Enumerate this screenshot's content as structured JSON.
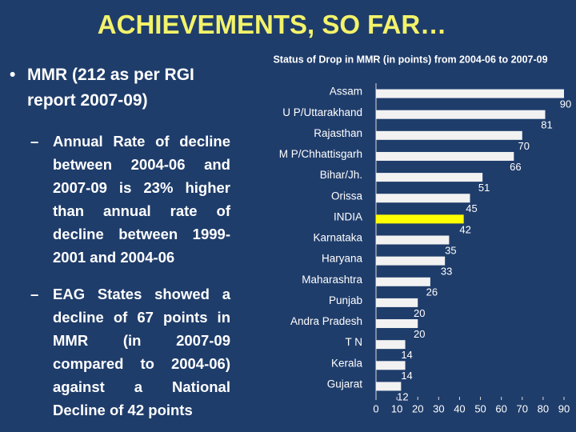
{
  "title": "ACHIEVEMENTS, SO FAR…",
  "bullets": [
    {
      "text": "MMR (212 as per RGI report 2007-09)",
      "subbullets": [
        "Annual Rate of decline between 2004-06 and 2007-09 is 23% higher than annual rate of decline between 1999-2001 and 2004-06",
        "EAG States showed a decline of 67 points in MMR (in 2007-09 compared to 2004-06) against a National Decline of 42 points"
      ]
    }
  ],
  "chart_data": {
    "type": "hbar",
    "title": "Status of Drop in MMR (in points) from 2004-06 to 2007-09",
    "categories": [
      "Assam",
      "U P/Uttarakhand",
      "Rajasthan",
      "M P/Chhattisgarh",
      "Bihar/Jh.",
      "Orissa",
      "INDIA",
      "Karnataka",
      "Haryana",
      "Maharashtra",
      "Punjab",
      "Andra Pradesh",
      "T N",
      "Kerala",
      "Gujarat"
    ],
    "values": [
      90,
      81,
      70,
      66,
      51,
      45,
      42,
      35,
      33,
      26,
      20,
      20,
      14,
      14,
      12
    ],
    "colors": [
      "#f2f2f2",
      "#f2f2f2",
      "#f2f2f2",
      "#f2f2f2",
      "#f2f2f2",
      "#f2f2f2",
      "#ffff00",
      "#f2f2f2",
      "#f2f2f2",
      "#f2f2f2",
      "#f2f2f2",
      "#f2f2f2",
      "#f2f2f2",
      "#f2f2f2",
      "#f2f2f2"
    ],
    "xlim": [
      0,
      90
    ],
    "xticks": [
      0,
      10,
      20,
      30,
      40,
      50,
      60,
      70,
      80,
      90
    ]
  }
}
